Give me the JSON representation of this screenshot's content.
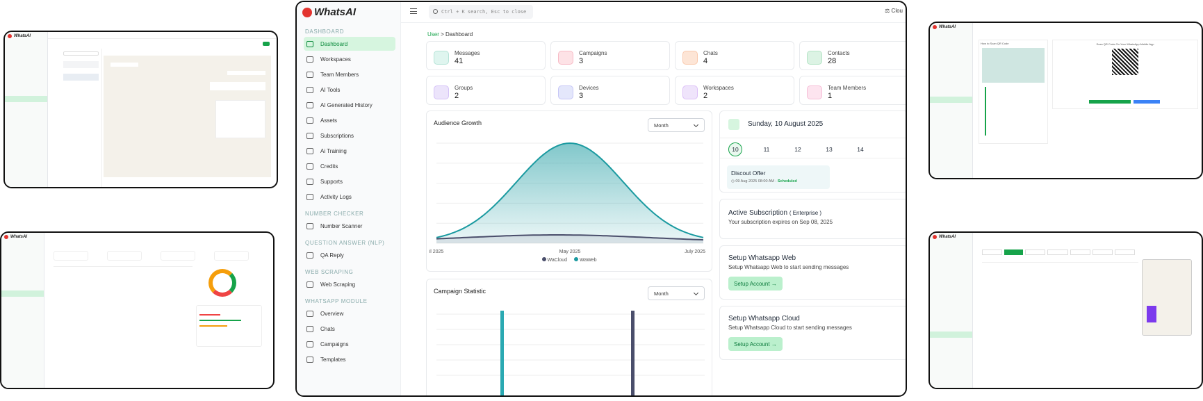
{
  "app": {
    "brand": "WhatsAI"
  },
  "main": {
    "sidebar": {
      "sections": [
        {
          "title": "DASHBOARD",
          "items": [
            "Dashboard",
            "Workspaces",
            "Team Members",
            "AI Tools",
            "AI Generated History",
            "Assets",
            "Subscriptions",
            "Ai Training",
            "Credits",
            "Supports",
            "Activity Logs"
          ]
        },
        {
          "title": "NUMBER CHECKER",
          "items": [
            "Number Scanner"
          ]
        },
        {
          "title": "QUESTION ANSWER (NLP)",
          "items": [
            "QA Reply"
          ]
        },
        {
          "title": "WEB SCRAPING",
          "items": [
            "Web Scraping"
          ]
        },
        {
          "title": "WHATSAPP MODULE",
          "items": [
            "Overview",
            "Chats",
            "Campaigns",
            "Templates"
          ]
        }
      ],
      "active": "Dashboard"
    },
    "search_placeholder": "Ctrl + K search, Esc to close",
    "topbar_right": "Clou",
    "breadcrumb": {
      "root": "User",
      "sep": ">",
      "current": "Dashboard"
    },
    "stats": [
      {
        "label": "Messages",
        "value": "41",
        "bg": "#dff5ef",
        "fg": "#0f9d7a"
      },
      {
        "label": "Campaigns",
        "value": "3",
        "bg": "#fde2e6",
        "fg": "#e11d48"
      },
      {
        "label": "Chats",
        "value": "4",
        "bg": "#fde5d6",
        "fg": "#ea580c"
      },
      {
        "label": "Contacts",
        "value": "28",
        "bg": "#dcf3e4",
        "fg": "#16a34a"
      },
      {
        "label": "Groups",
        "value": "2",
        "bg": "#ece4fb",
        "fg": "#7c3aed"
      },
      {
        "label": "Devices",
        "value": "3",
        "bg": "#e4e7fb",
        "fg": "#4f46e5"
      },
      {
        "label": "Workspaces",
        "value": "2",
        "bg": "#efe4fb",
        "fg": "#9333ea"
      },
      {
        "label": "Team Members",
        "value": "1",
        "bg": "#fde4ef",
        "fg": "#db2777"
      }
    ],
    "audience": {
      "title": "Audience Growth",
      "select": "Month",
      "x_labels": [
        "il 2025",
        "May 2025",
        "July 2025"
      ],
      "legend": [
        "WaCloud",
        "WaWeb"
      ]
    },
    "campaign_stat": {
      "title": "Campaign Statistic",
      "select": "Month"
    },
    "calendar": {
      "title": "Sunday, 10 August 2025",
      "days": [
        "10",
        "11",
        "12",
        "13",
        "14"
      ]
    },
    "offer": {
      "title": "Discout Offer",
      "meta": "09 Aug 2025 08:00 AM -",
      "status": "Scheduled"
    },
    "subscription": {
      "title": "Active Subscription",
      "plan": "( Enterprise )",
      "text": "Your subscription expires on Sep 08, 2025"
    },
    "setup_web": {
      "title": "Setup Whatsapp Web",
      "text": "Setup Whatsapp Web to start sending messages",
      "button": "Setup Account →"
    },
    "setup_cloud": {
      "title": "Setup Whatsapp Cloud",
      "text": "Setup Whatsapp Cloud to start sending messages",
      "button": "Setup Account →"
    }
  },
  "colors": {
    "accent": "#16a34a",
    "wacloud": "#4a4e6b",
    "waweb": "#1a9aa0"
  },
  "chart_data": [
    {
      "type": "area",
      "title": "Audience Growth",
      "x": [
        "il 2025",
        "May 2025",
        "July 2025"
      ],
      "series": [
        {
          "name": "WaCloud"
        },
        {
          "name": "WaWeb"
        }
      ]
    },
    {
      "type": "bar",
      "title": "Campaign Statistic"
    }
  ],
  "qr_page": {
    "heading": "How to Scan QR Code",
    "scan_title": "Scan QR Code On Your WhatsApp Mobile App"
  }
}
